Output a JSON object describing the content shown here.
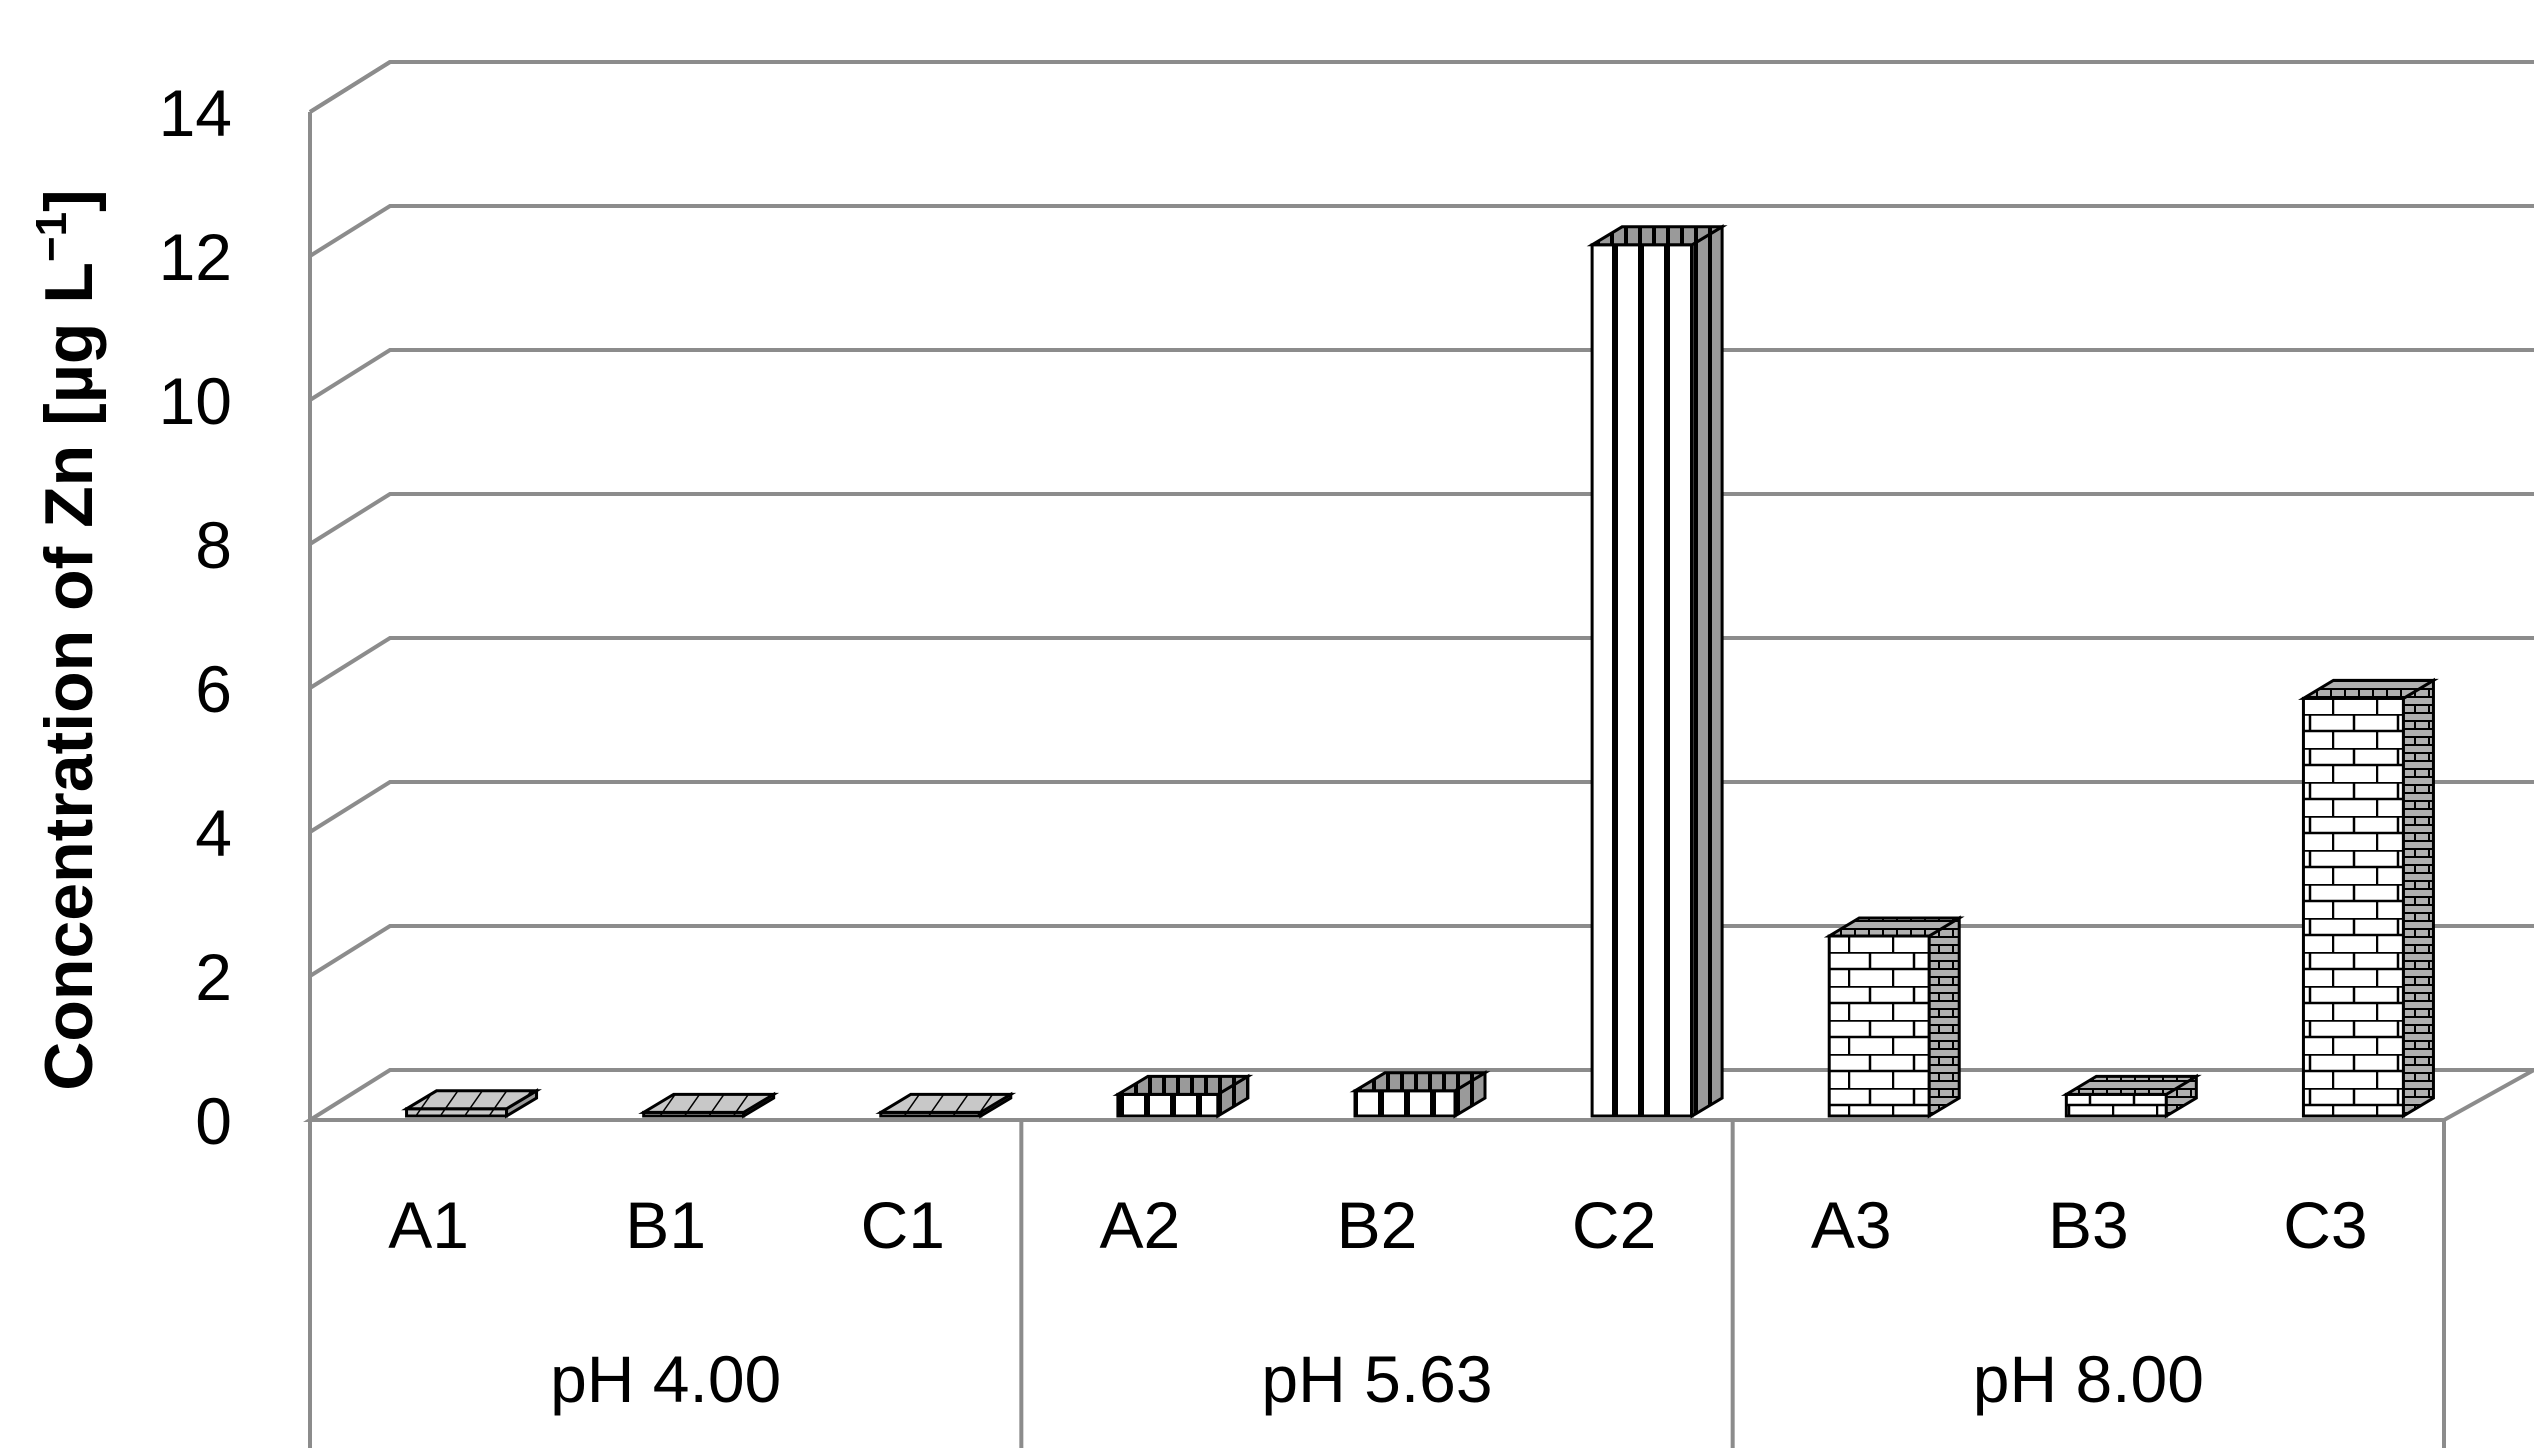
{
  "chart_data": {
    "type": "bar",
    "style": "3d-clustered-column",
    "ylabel_prefix": "Concentration of Zn  [µg L",
    "ylabel_exp": "−1",
    "ylabel_suffix": "]",
    "ylim": [
      0,
      14
    ],
    "yticks": [
      "0",
      "2",
      "4",
      "6",
      "8",
      "10",
      "12",
      "14"
    ],
    "grid": true,
    "categories": [
      "A1",
      "B1",
      "C1",
      "A2",
      "B2",
      "C2",
      "A3",
      "B3",
      "C3"
    ],
    "groups": [
      {
        "label": "pH 4.00",
        "categories": [
          "A1",
          "B1",
          "C1"
        ]
      },
      {
        "label": "pH 5.63",
        "categories": [
          "A2",
          "B2",
          "C2"
        ]
      },
      {
        "label": "pH 8.00",
        "categories": [
          "A3",
          "B3",
          "C3"
        ]
      }
    ],
    "values": [
      0.1,
      0.05,
      0.05,
      0.3,
      0.35,
      12.1,
      2.5,
      0.3,
      5.8
    ],
    "patterns": [
      "diagonal",
      "diagonal",
      "diagonal",
      "vertical",
      "vertical",
      "vertical",
      "brick",
      "brick",
      "brick"
    ],
    "colors": {
      "outline": "#000000",
      "fill": "#ffffff",
      "shade": "#bdbdbd",
      "grid": "#8c8c8c"
    }
  }
}
